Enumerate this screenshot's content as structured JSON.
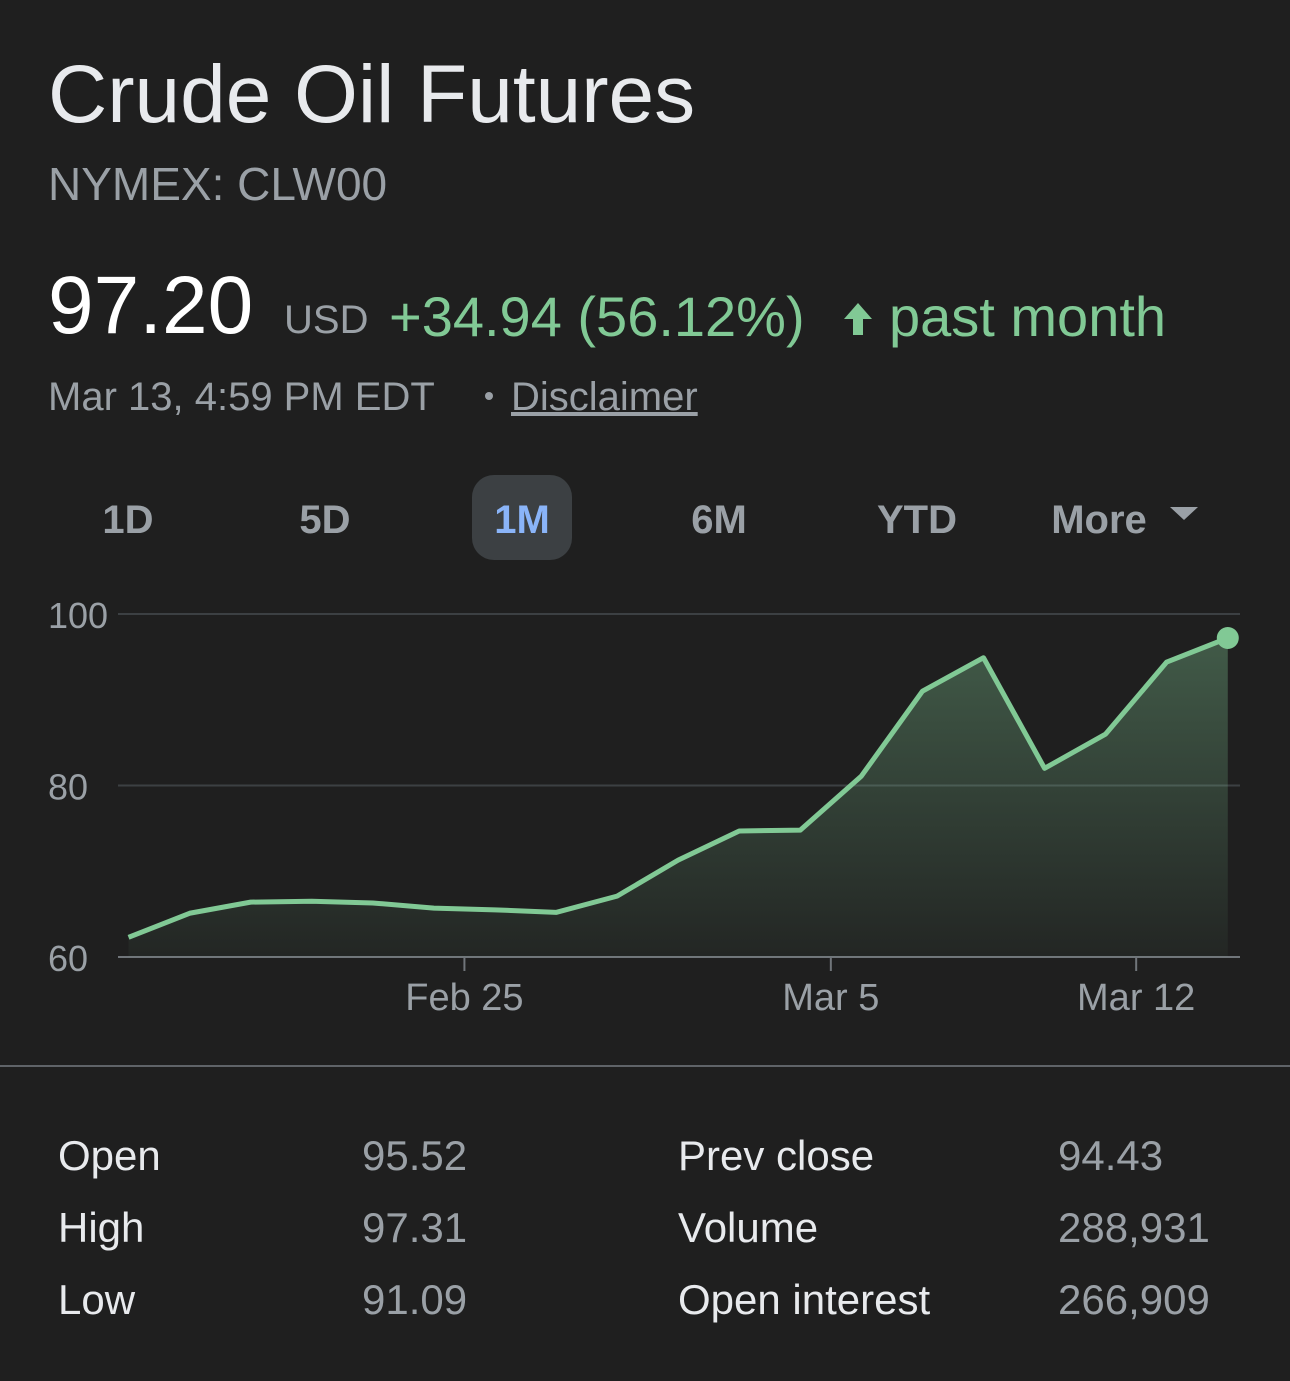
{
  "header": {
    "title": "Crude Oil Futures",
    "ticker": "NYMEX: CLW00"
  },
  "quote": {
    "price": "97.20",
    "currency": "USD",
    "change": "+34.94 (56.12%)",
    "period": "past month",
    "timestamp": "Mar 13, 4:59 PM EDT",
    "disclaimer": "Disclaimer"
  },
  "ranges": {
    "options": [
      "1D",
      "5D",
      "1M",
      "6M",
      "YTD",
      "More"
    ],
    "selected": "1M"
  },
  "chart_data": {
    "type": "area",
    "color": "#81c995",
    "x": [
      0,
      1,
      2,
      3,
      4,
      5,
      6,
      7,
      8,
      9,
      10,
      11,
      12,
      13,
      14,
      15,
      16,
      17,
      18
    ],
    "values": [
      62.3,
      65.1,
      66.4,
      66.5,
      66.3,
      65.7,
      65.5,
      65.2,
      67.1,
      71.3,
      74.7,
      74.8,
      81.1,
      91.0,
      94.9,
      82.0,
      86.0,
      94.4,
      97.2
    ],
    "xlim": [
      -0.5,
      18.2
    ],
    "xticks": [
      {
        "value": 5.5,
        "label": "Feb 25"
      },
      {
        "value": 11.5,
        "label": "Mar 5"
      },
      {
        "value": 16.5,
        "label": "Mar 12"
      }
    ],
    "ylim": [
      60,
      100
    ],
    "yticks": [
      60,
      80,
      100
    ],
    "grid": true
  },
  "stats": {
    "rows": [
      [
        "Open",
        "95.52",
        "Prev close",
        "94.43"
      ],
      [
        "High",
        "97.31",
        "Volume",
        "288,931"
      ],
      [
        "Low",
        "91.09",
        "Open interest",
        "266,909"
      ]
    ]
  }
}
